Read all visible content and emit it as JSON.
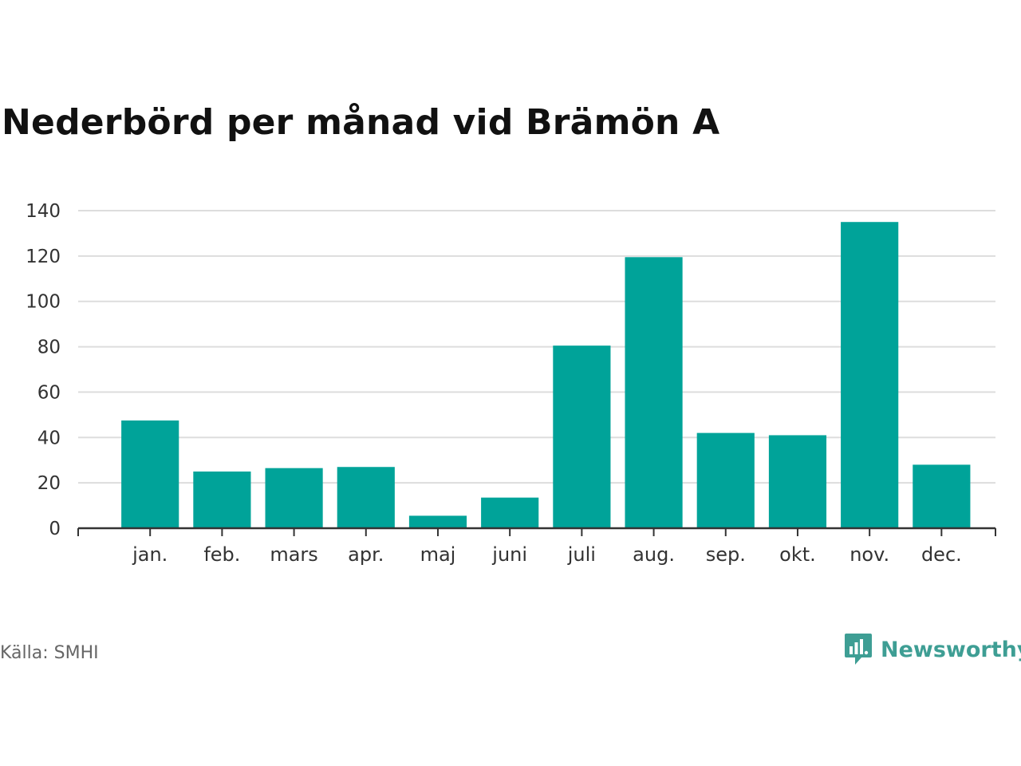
{
  "title": "Nederbörd per månad vid Brämön A",
  "source": "Källa: SMHI",
  "brand": {
    "name": "Newsworthy",
    "icon": "chart-bubble-icon",
    "color": "#3e9e94"
  },
  "colors": {
    "bar": "#00a399",
    "grid": "#dddddd",
    "axis": "#333333"
  },
  "chart_data": {
    "type": "bar",
    "title": "Nederbörd per månad vid Brämön A",
    "xlabel": "",
    "ylabel": "",
    "categories": [
      "jan.",
      "feb.",
      "mars",
      "apr.",
      "maj",
      "juni",
      "juli",
      "aug.",
      "sep.",
      "okt.",
      "nov.",
      "dec."
    ],
    "values": [
      47.5,
      25,
      26.5,
      27,
      5.5,
      13.5,
      80.5,
      119.5,
      42,
      41,
      135,
      28
    ],
    "ylim": [
      0,
      140
    ],
    "yticks": [
      0,
      20,
      40,
      60,
      80,
      100,
      120,
      140
    ],
    "grid": true,
    "legend": "none"
  }
}
